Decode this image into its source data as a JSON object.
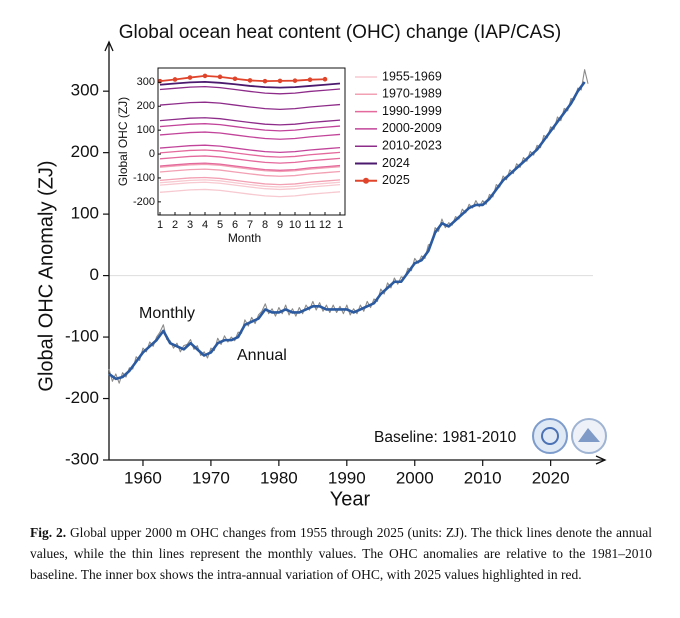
{
  "chart_data": [
    {
      "type": "line",
      "title": "Global ocean heat content (OHC) change (IAP/CAS)",
      "ylabel": "Global OHC Anomaly (ZJ)",
      "xlabel": "Year",
      "xlim": [
        1955,
        2028
      ],
      "ylim": [
        -300,
        380
      ],
      "xticks": [
        1960,
        1970,
        1980,
        1990,
        2000,
        2010,
        2020
      ],
      "yticks": [
        -300,
        -200,
        -100,
        0,
        100,
        200,
        300
      ],
      "reference_line": 0,
      "annotations": [
        "Baseline: 1981-2010"
      ],
      "series": [
        {
          "name": "Monthly",
          "color": "#8a8a8a",
          "x": [
            1955,
            1955.5,
            1956,
            1956.5,
            1957,
            1957.5,
            1958,
            1958.5,
            1959,
            1959.5,
            1960,
            1960.5,
            1961,
            1961.5,
            1962,
            1962.5,
            1963,
            1963.5,
            1964,
            1964.5,
            1965,
            1965.5,
            1966,
            1966.5,
            1967,
            1967.5,
            1968,
            1968.5,
            1969,
            1969.5,
            1970,
            1970.5,
            1971,
            1971.5,
            1972,
            1972.5,
            1973,
            1973.5,
            1974,
            1974.5,
            1975,
            1975.5,
            1976,
            1976.5,
            1977,
            1977.5,
            1978,
            1978.5,
            1979,
            1979.5,
            1980,
            1980.5,
            1981,
            1981.5,
            1982,
            1982.5,
            1983,
            1983.5,
            1984,
            1984.5,
            1985,
            1985.5,
            1986,
            1986.5,
            1987,
            1987.5,
            1988,
            1988.5,
            1989,
            1989.5,
            1990,
            1990.5,
            1991,
            1991.5,
            1992,
            1992.5,
            1993,
            1993.5,
            1994,
            1994.5,
            1995,
            1995.5,
            1996,
            1996.5,
            1997,
            1997.5,
            1998,
            1998.5,
            1999,
            1999.5,
            2000,
            2000.5,
            2001,
            2001.5,
            2002,
            2002.5,
            2003,
            2003.5,
            2004,
            2004.5,
            2005,
            2005.5,
            2006,
            2006.5,
            2007,
            2007.5,
            2008,
            2008.5,
            2009,
            2009.5,
            2010,
            2010.5,
            2011,
            2011.5,
            2012,
            2012.5,
            2013,
            2013.5,
            2014,
            2014.5,
            2015,
            2015.5,
            2016,
            2016.5,
            2017,
            2017.5,
            2018,
            2018.5,
            2019,
            2019.5,
            2020,
            2020.5,
            2021,
            2021.5,
            2022,
            2022.5,
            2023,
            2023.5,
            2024,
            2024.5,
            2025,
            2025.5
          ],
          "values": [
            -152,
            -172,
            -160,
            -175,
            -158,
            -165,
            -150,
            -152,
            -132,
            -138,
            -118,
            -124,
            -108,
            -115,
            -100,
            -92,
            -80,
            -104,
            -106,
            -118,
            -110,
            -124,
            -114,
            -112,
            -104,
            -120,
            -114,
            -130,
            -124,
            -134,
            -118,
            -122,
            -102,
            -112,
            -98,
            -108,
            -100,
            -106,
            -92,
            -94,
            -72,
            -82,
            -68,
            -78,
            -64,
            -58,
            -46,
            -62,
            -54,
            -66,
            -52,
            -62,
            -48,
            -64,
            -54,
            -66,
            -52,
            -62,
            -48,
            -56,
            -42,
            -56,
            -44,
            -58,
            -48,
            -60,
            -48,
            -60,
            -50,
            -62,
            -48,
            -64,
            -54,
            -62,
            -48,
            -58,
            -42,
            -52,
            -38,
            -42,
            -22,
            -30,
            -12,
            -20,
            -4,
            -14,
            -2,
            -4,
            12,
            8,
            28,
            20,
            32,
            28,
            50,
            52,
            78,
            72,
            92,
            78,
            86,
            82,
            96,
            92,
            108,
            102,
            116,
            110,
            122,
            112,
            122,
            116,
            132,
            128,
            148,
            144,
            162,
            156,
            172,
            166,
            182,
            176,
            192,
            186,
            202,
            196,
            212,
            208,
            228,
            224,
            242,
            238,
            258,
            252,
            272,
            268,
            288,
            286,
            305,
            302,
            335,
            312
          ]
        },
        {
          "name": "Annual",
          "color": "#2b5aa0",
          "x": [
            1955,
            1956,
            1957,
            1958,
            1959,
            1960,
            1961,
            1962,
            1963,
            1964,
            1965,
            1966,
            1967,
            1968,
            1969,
            1970,
            1971,
            1972,
            1973,
            1974,
            1975,
            1976,
            1977,
            1978,
            1979,
            1980,
            1981,
            1982,
            1983,
            1984,
            1985,
            1986,
            1987,
            1988,
            1989,
            1990,
            1991,
            1992,
            1993,
            1994,
            1995,
            1996,
            1997,
            1998,
            1999,
            2000,
            2001,
            2002,
            2003,
            2004,
            2005,
            2006,
            2007,
            2008,
            2009,
            2010,
            2011,
            2012,
            2013,
            2014,
            2015,
            2016,
            2017,
            2018,
            2019,
            2020,
            2021,
            2022,
            2023,
            2024,
            2025
          ],
          "values": [
            -160,
            -168,
            -165,
            -155,
            -140,
            -125,
            -115,
            -105,
            -90,
            -110,
            -115,
            -120,
            -110,
            -120,
            -130,
            -125,
            -110,
            -105,
            -105,
            -100,
            -80,
            -75,
            -70,
            -55,
            -60,
            -60,
            -55,
            -60,
            -60,
            -55,
            -50,
            -50,
            -55,
            -55,
            -55,
            -55,
            -60,
            -55,
            -50,
            -45,
            -30,
            -20,
            -10,
            -10,
            5,
            20,
            25,
            40,
            70,
            85,
            80,
            90,
            100,
            110,
            115,
            115,
            125,
            140,
            155,
            165,
            175,
            185,
            195,
            205,
            220,
            235,
            250,
            265,
            280,
            300,
            315
          ]
        }
      ]
    },
    {
      "type": "line",
      "ylabel": "Global OHC (ZJ)",
      "xlabel": "Month",
      "categories": [
        "1",
        "2",
        "3",
        "4",
        "5",
        "6",
        "7",
        "8",
        "9",
        "10",
        "11",
        "12",
        "1"
      ],
      "ylim": [
        -255,
        360
      ],
      "yticks": [
        -200,
        -100,
        0,
        100,
        200,
        300
      ],
      "series": [
        {
          "name": "1955-1969",
          "color": "#f7c9d0",
          "lines": [
            [
              -160,
              -155,
              -150,
              -148,
              -152,
              -160,
              -168,
              -175,
              -178,
              -175,
              -168,
              -163,
              -158
            ],
            [
              -130,
              -125,
              -120,
              -118,
              -122,
              -130,
              -138,
              -145,
              -148,
              -145,
              -138,
              -133,
              -128
            ],
            [
              -120,
              -115,
              -110,
              -108,
              -112,
              -120,
              -128,
              -135,
              -138,
              -135,
              -128,
              -123,
              -118
            ]
          ]
        },
        {
          "name": "1970-1989",
          "color": "#f2a0b3",
          "lines": [
            [
              -110,
              -105,
              -100,
              -98,
              -102,
              -110,
              -118,
              -125,
              -128,
              -125,
              -118,
              -113,
              -108
            ],
            [
              -75,
              -70,
              -65,
              -63,
              -67,
              -75,
              -83,
              -90,
              -93,
              -90,
              -83,
              -78,
              -73
            ],
            [
              -55,
              -50,
              -45,
              -43,
              -47,
              -55,
              -63,
              -70,
              -73,
              -70,
              -63,
              -58,
              -53
            ]
          ]
        },
        {
          "name": "1990-1999",
          "color": "#e4699c",
          "lines": [
            [
              -50,
              -45,
              -40,
              -38,
              -42,
              -50,
              -58,
              -65,
              -68,
              -65,
              -58,
              -53,
              -48
            ],
            [
              -20,
              -15,
              -10,
              -8,
              -12,
              -20,
              -28,
              -35,
              -38,
              -35,
              -28,
              -23,
              -18
            ],
            [
              5,
              10,
              15,
              17,
              13,
              5,
              -3,
              -10,
              -13,
              -10,
              -3,
              2,
              7
            ]
          ]
        },
        {
          "name": "2000-2009",
          "color": "#c2449a",
          "lines": [
            [
              25,
              30,
              35,
              37,
              33,
              25,
              17,
              10,
              7,
              10,
              17,
              22,
              27
            ],
            [
              80,
              85,
              90,
              92,
              88,
              80,
              72,
              65,
              62,
              65,
              72,
              77,
              82
            ],
            [
              115,
              120,
              125,
              127,
              123,
              115,
              107,
              100,
              97,
              100,
              107,
              112,
              117
            ]
          ]
        },
        {
          "name": "2010-2023",
          "color": "#8e2c8a",
          "lines": [
            [
              140,
              145,
              150,
              152,
              148,
              140,
              132,
              125,
              122,
              125,
              132,
              137,
              142
            ],
            [
              205,
              210,
              215,
              217,
              213,
              205,
              197,
              190,
              187,
              190,
              197,
              202,
              207
            ],
            [
              270,
              275,
              280,
              282,
              278,
              270,
              262,
              255,
              252,
              255,
              262,
              267,
              272
            ]
          ]
        },
        {
          "name": "2024",
          "color": "#4b1a6e",
          "lines": [
            [
              290,
              295,
              300,
              302,
              298,
              292,
              285,
              280,
              278,
              280,
              285,
              290,
              295
            ]
          ]
        },
        {
          "name": "2025",
          "color": "#e0452b",
          "marker": true,
          "lines": [
            [
              305,
              312,
              320,
              327,
              323,
              315,
              308,
              305,
              306,
              307,
              311,
              313,
              null
            ]
          ]
        }
      ]
    }
  ],
  "caption": {
    "label": "Fig. 2.",
    "text": "Global upper 2000 m OHC changes from 1955 through 2025 (units: ZJ). The thick lines denote the annual values, while the thin lines represent the monthly values. The OHC anomalies are relative to the 1981–2010 baseline. The inner box shows the intra-annual variation of OHC, with 2025 values highlighted in red."
  }
}
